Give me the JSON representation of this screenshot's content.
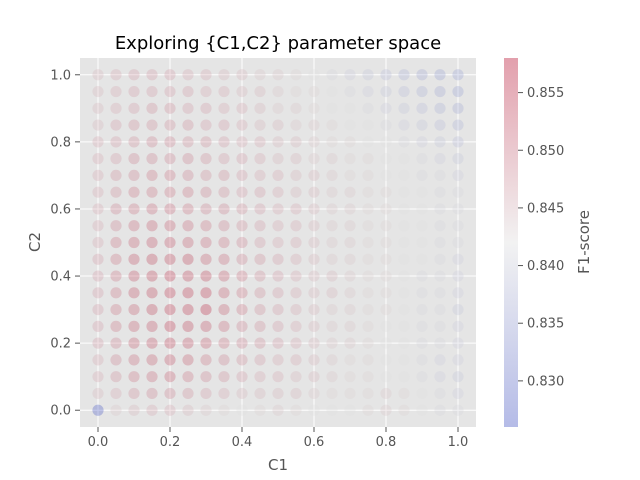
{
  "chart_data": {
    "type": "scatter",
    "title": "Exploring {C1,C2} parameter space",
    "xlabel": "C1",
    "ylabel": "C2",
    "xlim": [
      -0.05,
      1.05
    ],
    "ylim": [
      -0.05,
      1.05
    ],
    "x_ticks": [
      "0.0",
      "0.2",
      "0.4",
      "0.6",
      "0.8",
      "1.0"
    ],
    "y_ticks": [
      "0.0",
      "0.2",
      "0.4",
      "0.6",
      "0.8",
      "1.0"
    ],
    "grid": true,
    "colorbar": {
      "label": "F1-score",
      "range": [
        0.826,
        0.858
      ],
      "ticks": [
        "0.830",
        "0.835",
        "0.840",
        "0.845",
        "0.850",
        "0.855"
      ],
      "colormap": "coolwarm",
      "cmap_stops": [
        "#3b4cc0",
        "#dddddd",
        "#b40426"
      ]
    },
    "grid_points": {
      "x_start": 0.0,
      "x_stop": 1.0,
      "x_step": 0.05,
      "y_start": 0.0,
      "y_stop": 1.0,
      "y_step": 0.05
    },
    "f1_grid": [
      [
        0.826,
        0.844,
        0.845,
        0.846,
        0.846,
        0.845,
        0.844,
        0.843,
        0.842,
        0.843,
        0.844,
        0.843,
        0.842,
        0.842,
        0.842,
        0.843,
        0.844,
        0.843,
        0.842,
        0.841,
        0.841
      ],
      [
        0.845,
        0.846,
        0.848,
        0.849,
        0.849,
        0.848,
        0.847,
        0.846,
        0.845,
        0.845,
        0.845,
        0.845,
        0.844,
        0.843,
        0.843,
        0.843,
        0.844,
        0.843,
        0.842,
        0.841,
        0.84
      ],
      [
        0.846,
        0.848,
        0.85,
        0.851,
        0.852,
        0.85,
        0.849,
        0.848,
        0.847,
        0.846,
        0.846,
        0.845,
        0.845,
        0.844,
        0.843,
        0.843,
        0.842,
        0.842,
        0.841,
        0.84,
        0.839
      ],
      [
        0.846,
        0.849,
        0.851,
        0.852,
        0.853,
        0.852,
        0.85,
        0.849,
        0.848,
        0.847,
        0.846,
        0.846,
        0.845,
        0.844,
        0.843,
        0.843,
        0.842,
        0.842,
        0.841,
        0.84,
        0.84
      ],
      [
        0.847,
        0.849,
        0.852,
        0.853,
        0.854,
        0.853,
        0.852,
        0.85,
        0.849,
        0.848,
        0.847,
        0.846,
        0.845,
        0.844,
        0.844,
        0.843,
        0.842,
        0.842,
        0.841,
        0.841,
        0.84
      ],
      [
        0.847,
        0.85,
        0.852,
        0.853,
        0.855,
        0.854,
        0.853,
        0.851,
        0.849,
        0.848,
        0.847,
        0.846,
        0.845,
        0.844,
        0.844,
        0.843,
        0.842,
        0.842,
        0.841,
        0.841,
        0.84
      ],
      [
        0.847,
        0.85,
        0.852,
        0.854,
        0.855,
        0.855,
        0.856,
        0.852,
        0.85,
        0.848,
        0.847,
        0.846,
        0.845,
        0.844,
        0.844,
        0.843,
        0.843,
        0.842,
        0.841,
        0.841,
        0.839
      ],
      [
        0.847,
        0.85,
        0.853,
        0.854,
        0.855,
        0.855,
        0.855,
        0.852,
        0.85,
        0.848,
        0.847,
        0.846,
        0.845,
        0.845,
        0.844,
        0.843,
        0.843,
        0.842,
        0.841,
        0.841,
        0.84
      ],
      [
        0.847,
        0.85,
        0.853,
        0.854,
        0.855,
        0.854,
        0.854,
        0.852,
        0.85,
        0.848,
        0.847,
        0.846,
        0.845,
        0.845,
        0.844,
        0.843,
        0.843,
        0.842,
        0.841,
        0.841,
        0.84
      ],
      [
        0.847,
        0.85,
        0.853,
        0.854,
        0.854,
        0.854,
        0.852,
        0.851,
        0.849,
        0.848,
        0.847,
        0.846,
        0.845,
        0.844,
        0.844,
        0.843,
        0.843,
        0.842,
        0.842,
        0.841,
        0.84
      ],
      [
        0.846,
        0.85,
        0.852,
        0.853,
        0.853,
        0.852,
        0.851,
        0.85,
        0.849,
        0.847,
        0.846,
        0.846,
        0.845,
        0.844,
        0.844,
        0.843,
        0.843,
        0.842,
        0.842,
        0.841,
        0.841
      ],
      [
        0.846,
        0.849,
        0.851,
        0.852,
        0.852,
        0.851,
        0.85,
        0.849,
        0.848,
        0.847,
        0.846,
        0.846,
        0.845,
        0.844,
        0.844,
        0.843,
        0.843,
        0.842,
        0.842,
        0.841,
        0.841
      ],
      [
        0.846,
        0.849,
        0.85,
        0.851,
        0.851,
        0.85,
        0.849,
        0.849,
        0.848,
        0.847,
        0.846,
        0.846,
        0.845,
        0.844,
        0.844,
        0.843,
        0.843,
        0.842,
        0.842,
        0.841,
        0.841
      ],
      [
        0.846,
        0.848,
        0.85,
        0.85,
        0.85,
        0.85,
        0.849,
        0.848,
        0.847,
        0.847,
        0.846,
        0.845,
        0.845,
        0.844,
        0.844,
        0.843,
        0.843,
        0.842,
        0.842,
        0.841,
        0.841
      ],
      [
        0.846,
        0.848,
        0.849,
        0.85,
        0.85,
        0.849,
        0.848,
        0.848,
        0.847,
        0.846,
        0.846,
        0.845,
        0.845,
        0.844,
        0.843,
        0.843,
        0.842,
        0.842,
        0.841,
        0.841,
        0.84
      ],
      [
        0.846,
        0.847,
        0.849,
        0.849,
        0.849,
        0.849,
        0.848,
        0.847,
        0.847,
        0.846,
        0.845,
        0.845,
        0.844,
        0.844,
        0.843,
        0.843,
        0.842,
        0.842,
        0.841,
        0.84,
        0.839
      ],
      [
        0.846,
        0.847,
        0.848,
        0.849,
        0.849,
        0.848,
        0.848,
        0.847,
        0.846,
        0.846,
        0.845,
        0.845,
        0.844,
        0.843,
        0.843,
        0.842,
        0.842,
        0.841,
        0.84,
        0.839,
        0.838
      ],
      [
        0.845,
        0.847,
        0.848,
        0.848,
        0.848,
        0.848,
        0.847,
        0.847,
        0.846,
        0.845,
        0.845,
        0.844,
        0.844,
        0.843,
        0.842,
        0.842,
        0.841,
        0.84,
        0.839,
        0.838,
        0.837
      ],
      [
        0.845,
        0.846,
        0.847,
        0.848,
        0.848,
        0.847,
        0.847,
        0.846,
        0.846,
        0.845,
        0.844,
        0.844,
        0.843,
        0.842,
        0.842,
        0.841,
        0.84,
        0.839,
        0.838,
        0.837,
        0.836
      ],
      [
        0.845,
        0.846,
        0.847,
        0.847,
        0.847,
        0.847,
        0.846,
        0.846,
        0.845,
        0.845,
        0.844,
        0.843,
        0.843,
        0.842,
        0.841,
        0.84,
        0.839,
        0.838,
        0.837,
        0.836,
        0.835
      ],
      [
        0.845,
        0.846,
        0.847,
        0.847,
        0.847,
        0.846,
        0.846,
        0.845,
        0.845,
        0.844,
        0.844,
        0.843,
        0.842,
        0.841,
        0.84,
        0.839,
        0.838,
        0.837,
        0.836,
        0.835,
        0.835
      ]
    ]
  }
}
